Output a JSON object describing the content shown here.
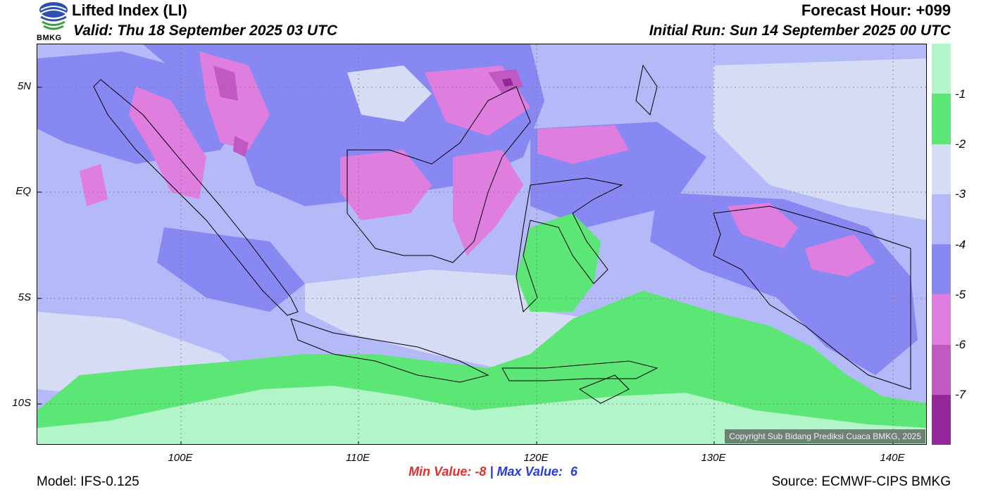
{
  "header": {
    "title": "Lifted Index (LI)",
    "valid": "Valid: Thu 18 September 2025 03 UTC",
    "forecast_hour": "Forecast Hour: +099",
    "initial_run": "Initial Run: Sun 14 September 2025 00 UTC",
    "logo_text": "BMKG"
  },
  "map": {
    "lat_labels": [
      "5N",
      "EQ",
      "5S",
      "10S"
    ],
    "lon_labels": [
      "100E",
      "110E",
      "120E",
      "130E",
      "140E"
    ],
    "copyright": "Copyright Sub Bidang Prediksi Cuaca BMKG, 2025"
  },
  "colorbar": {
    "labels": [
      "-1",
      "-2",
      "-3",
      "-4",
      "-5",
      "-6",
      "-7"
    ],
    "colors": [
      "#b1f5c8",
      "#5ce675",
      "#d7dcf5",
      "#b4b9f7",
      "#8888f2",
      "#e07ee0",
      "#c05ac2",
      "#95279b"
    ]
  },
  "stats": {
    "min_label": "Min Value:",
    "min_value": "-8",
    "separator": "|",
    "max_label": "Max Value:",
    "max_value": "6",
    "min_color": "#e03030",
    "max_color": "#2a3ae0"
  },
  "footer": {
    "model": "Model: IFS-0.125",
    "source": "Source: ECMWF-CIPS BMKG"
  }
}
